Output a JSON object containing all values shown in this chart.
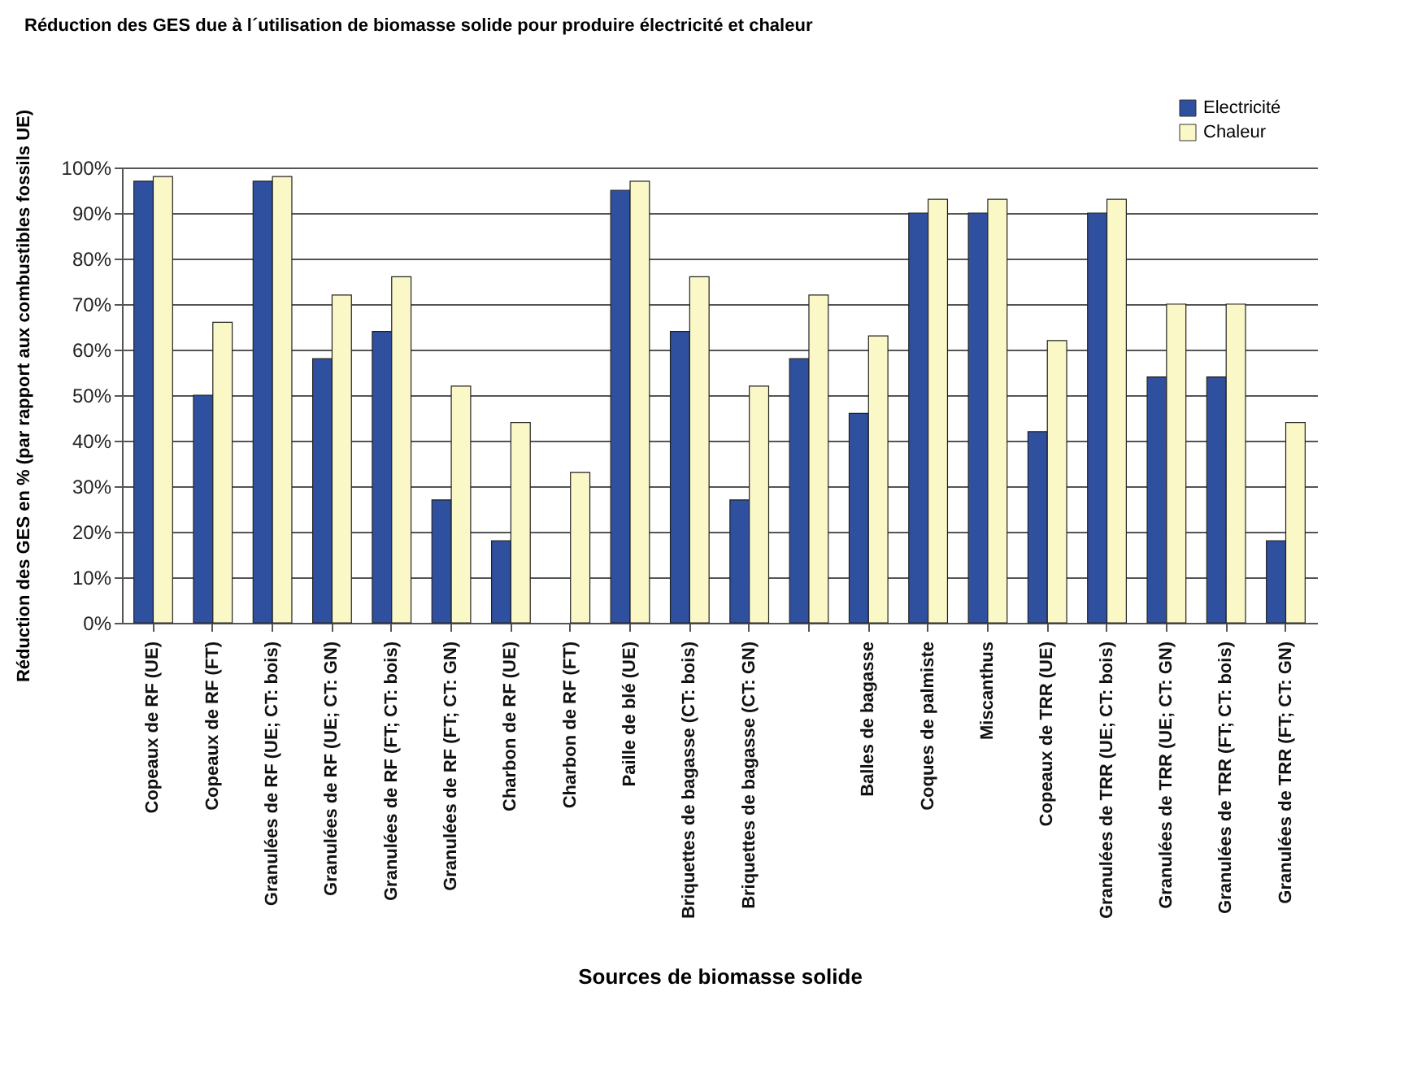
{
  "chart_data": {
    "type": "bar",
    "title": "Réduction des GES due à l´utilisation de biomasse solide pour produire électricité et chaleur",
    "xlabel": "Sources de biomasse solide",
    "ylabel": "Réduction des GES en % (par rapport aux combustibles fossils UE)",
    "categories": [
      "Copeaux de RF (UE)",
      "Copeaux de RF (FT)",
      "Granulées de RF (UE; CT: bois)",
      "Granulées de RF (UE; CT: GN)",
      "Granulées de RF (FT; CT: bois)",
      "Granulées de RF (FT; CT: GN)",
      "Charbon de RF (UE)",
      "Charbon de RF (FT)",
      "Paille de blé (UE)",
      "Briquettes de bagasse (CT: bois)",
      "Briquettes de bagasse (CT: GN)",
      null,
      "Balles de bagasse",
      "Coques de palmiste",
      "Miscanthus",
      "Copeaux de TRR (UE)",
      "Granulées de TRR (UE; CT: bois)",
      "Granulées de TRR (UE; CT: GN)",
      "Granulées de TRR (FT; CT: bois)",
      "Granulées de TRR (FT; CT: GN)"
    ],
    "series": [
      {
        "name": "Electricité",
        "color": "#2f4f9f",
        "values": [
          97,
          50,
          97,
          58,
          64,
          27,
          18,
          null,
          95,
          64,
          27,
          58,
          46,
          90,
          90,
          42,
          90,
          54,
          54,
          18
        ]
      },
      {
        "name": "Chaleur",
        "color": "#fbf8c8",
        "values": [
          98,
          66,
          98,
          72,
          76,
          52,
          44,
          33,
          97,
          76,
          52,
          72,
          63,
          93,
          93,
          62,
          93,
          70,
          70,
          44
        ]
      }
    ],
    "ylim": [
      0,
      100
    ],
    "yticks": [
      {
        "value": 0,
        "label": "0%"
      },
      {
        "value": 10,
        "label": "10%"
      },
      {
        "value": 20,
        "label": "20%"
      },
      {
        "value": 30,
        "label": "30%"
      },
      {
        "value": 40,
        "label": "40%"
      },
      {
        "value": 50,
        "label": "50%"
      },
      {
        "value": 60,
        "label": "60%"
      },
      {
        "value": 70,
        "label": "70%"
      },
      {
        "value": 80,
        "label": "80%"
      },
      {
        "value": 90,
        "label": "90%"
      },
      {
        "value": 100,
        "label": "100%"
      }
    ],
    "grid": "y",
    "legend": "top right"
  }
}
